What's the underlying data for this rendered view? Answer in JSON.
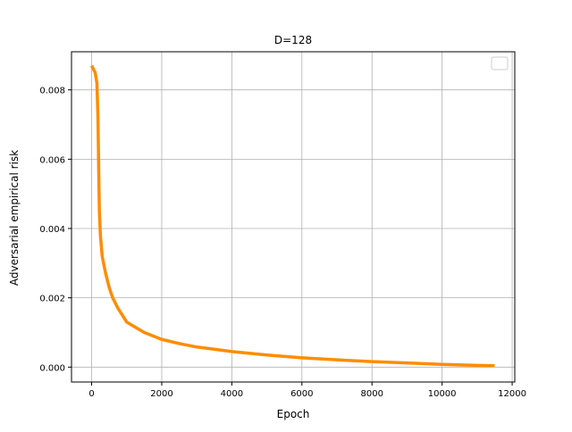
{
  "chart_data": {
    "type": "line",
    "title": "D=128",
    "x_label": "Epoch",
    "y_label": "Adversarial empirical risk",
    "x": [
      0,
      50,
      100,
      150,
      180,
      200,
      220,
      250,
      300,
      400,
      500,
      600,
      750,
      1000,
      1500,
      2000,
      2500,
      3000,
      4000,
      5000,
      6000,
      7000,
      8000,
      9000,
      10000,
      11000,
      11500
    ],
    "series": [
      {
        "color": "#ff8c00",
        "values": [
          0.0087,
          0.0086,
          0.0085,
          0.0082,
          0.0072,
          0.0058,
          0.0045,
          0.0038,
          0.0032,
          0.0027,
          0.0023,
          0.002,
          0.0017,
          0.0013,
          0.001,
          0.0008,
          0.00068,
          0.00058,
          0.00045,
          0.00035,
          0.00027,
          0.00021,
          0.00016,
          0.00012,
          8e-05,
          5e-05,
          4e-05
        ]
      }
    ],
    "xlim": [
      -575,
      12075
    ],
    "ylim": [
      -0.00043,
      0.0091
    ],
    "xticks": [
      0,
      2000,
      4000,
      6000,
      8000,
      10000,
      12000
    ],
    "yticks": [
      {
        "value": 0,
        "label": "0.000"
      },
      {
        "value": 0.002,
        "label": "0.002"
      },
      {
        "value": 0.004,
        "label": "0.004"
      },
      {
        "value": 0.006,
        "label": "0.006"
      },
      {
        "value": 0.008,
        "label": "0.008"
      }
    ],
    "grid": true,
    "legend": "upper right"
  }
}
